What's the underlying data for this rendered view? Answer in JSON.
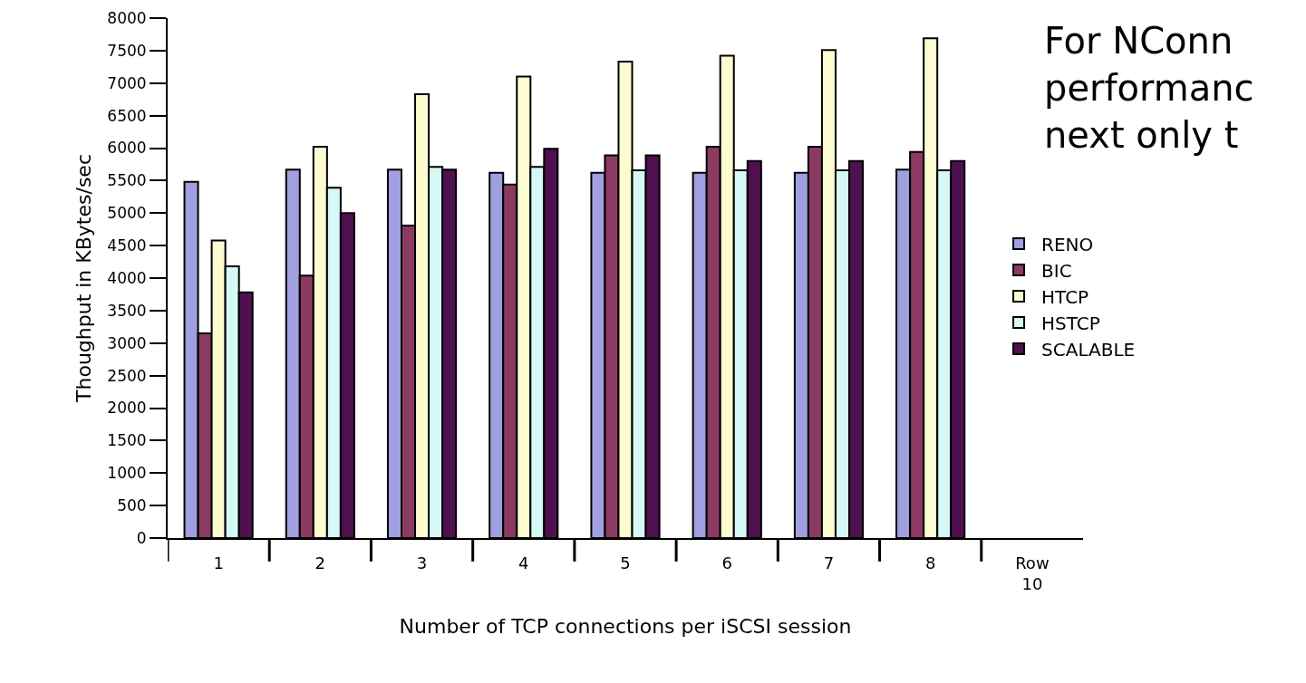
{
  "chart_data": {
    "type": "bar",
    "categories": [
      "1",
      "2",
      "3",
      "4",
      "5",
      "6",
      "7",
      "8",
      "Row 10"
    ],
    "series": [
      {
        "name": "RENO",
        "color": "#a09fe0",
        "values": [
          5480,
          5670,
          5670,
          5620,
          5620,
          5620,
          5620,
          5670,
          null
        ]
      },
      {
        "name": "BIC",
        "color": "#8b3a62",
        "values": [
          3150,
          4040,
          4810,
          5440,
          5890,
          6020,
          6020,
          5940,
          null
        ]
      },
      {
        "name": "HTCP",
        "color": "#fdfbd0",
        "values": [
          4580,
          6020,
          6830,
          7100,
          7330,
          7420,
          7510,
          7690,
          null
        ]
      },
      {
        "name": "HSTCP",
        "color": "#d6f8f6",
        "values": [
          4180,
          5390,
          5710,
          5710,
          5660,
          5660,
          5660,
          5660,
          null
        ]
      },
      {
        "name": "SCALABLE",
        "color": "#4f1050",
        "values": [
          3780,
          5000,
          5670,
          5990,
          5890,
          5800,
          5800,
          5800,
          null
        ]
      }
    ],
    "xlabel": "Number of TCP connections per iSCSI session",
    "ylabel": "Thoughput in KBytes/sec",
    "ylim": [
      0,
      8000
    ],
    "yticks": [
      0,
      500,
      1000,
      1500,
      2000,
      2500,
      3000,
      3500,
      4000,
      4500,
      5000,
      5500,
      6000,
      6500,
      7000,
      7500,
      8000
    ],
    "annotations": [
      "For NConn\nperformanc\nnext only t"
    ],
    "grid": false,
    "legend": "right"
  }
}
